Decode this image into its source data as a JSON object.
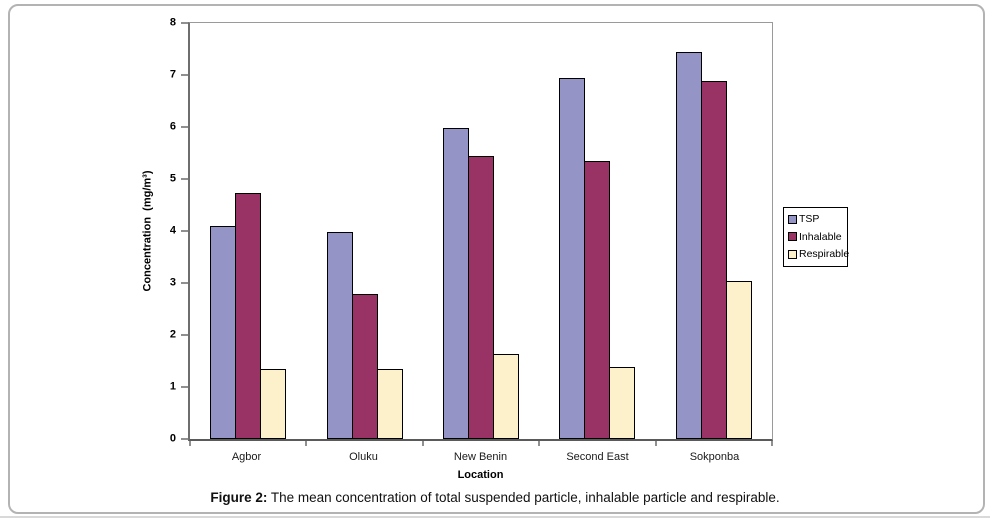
{
  "figure": {
    "caption_prefix": "Figure 2:",
    "caption_rest": " The mean concentration of total suspended particle, inhalable particle and respirable."
  },
  "chart_data": {
    "type": "bar",
    "title": "",
    "categories": [
      "Agbor",
      "Oluku",
      "New Benin",
      "Second East",
      "Sokponba"
    ],
    "series": [
      {
        "name": "TSP",
        "color": "#9495C6",
        "values": [
          4.05,
          3.95,
          5.95,
          6.9,
          7.4
        ]
      },
      {
        "name": "Inhalable",
        "color": "#993366",
        "values": [
          4.7,
          2.75,
          5.4,
          5.3,
          6.85
        ]
      },
      {
        "name": "Respirable",
        "color": "#FCF1CB",
        "values": [
          1.3,
          1.3,
          1.6,
          1.35,
          3.0
        ]
      }
    ],
    "xlabel": "Location",
    "ylabel": "Concentration  (mg/m³)",
    "ylim": [
      0,
      8
    ],
    "yticks": [
      0,
      1,
      2,
      3,
      4,
      5,
      6,
      7,
      8
    ],
    "grid": false,
    "legend_position": "right",
    "legend_labels": [
      "TSP",
      "Inhalable",
      "Respirable"
    ],
    "bar_border_color": "#000000"
  }
}
